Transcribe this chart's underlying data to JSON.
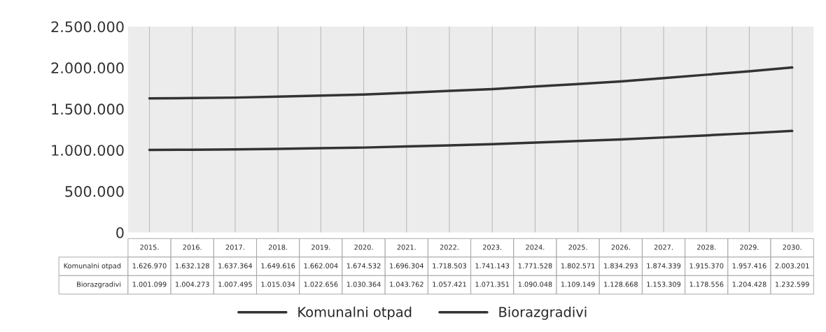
{
  "chart_data": {
    "type": "line",
    "categories": [
      "2015.",
      "2016.",
      "2017.",
      "2018.",
      "2019.",
      "2020.",
      "2021.",
      "2022.",
      "2023.",
      "2024.",
      "2025.",
      "2026.",
      "2027.",
      "2028.",
      "2029.",
      "2030."
    ],
    "series": [
      {
        "name": "Komunalni otpad",
        "color": "#333333",
        "values": [
          1626970,
          1632128,
          1637364,
          1649616,
          1662004,
          1674532,
          1696304,
          1718503,
          1741143,
          1771528,
          1802571,
          1834293,
          1874339,
          1915370,
          1957416,
          2003201
        ],
        "value_labels": [
          "1.626.970",
          "1.632.128",
          "1.637.364",
          "1.649.616",
          "1.662.004",
          "1.674.532",
          "1.696.304",
          "1.718.503",
          "1.741.143",
          "1.771.528",
          "1.802.571",
          "1.834.293",
          "1.874.339",
          "1.915.370",
          "1.957.416",
          "2.003.201"
        ]
      },
      {
        "name": "Biorazgradivi",
        "color": "#333333",
        "values": [
          1001099,
          1004273,
          1007495,
          1015034,
          1022656,
          1030364,
          1043762,
          1057421,
          1071351,
          1090048,
          1109149,
          1128668,
          1153309,
          1178556,
          1204428,
          1232599
        ],
        "value_labels": [
          "1.001.099",
          "1.004.273",
          "1.007.495",
          "1.015.034",
          "1.022.656",
          "1.030.364",
          "1.043.762",
          "1.057.421",
          "1.071.351",
          "1.090.048",
          "1.109.149",
          "1.128.668",
          "1.153.309",
          "1.178.556",
          "1.204.428",
          "1.232.599"
        ]
      }
    ],
    "ylim": [
      0,
      2500000
    ],
    "yticks": [
      0,
      {
        "value": 500000,
        "label": "500.000"
      },
      {
        "value": 1000000,
        "label": "1.000.000"
      },
      {
        "value": 1500000,
        "label": "1.500.000"
      },
      {
        "value": 2000000,
        "label": "2.000.000"
      },
      {
        "value": 2500000,
        "label": "2.500.000"
      }
    ],
    "grid": "x",
    "legend": "bottom",
    "marker": "none",
    "line_style": "solid"
  }
}
